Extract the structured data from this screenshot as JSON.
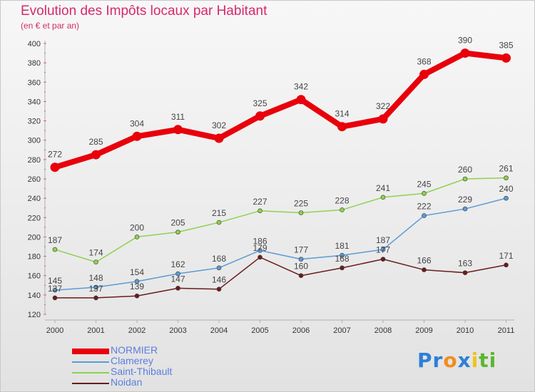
{
  "header": {
    "title": "Evolution des Impôts locaux par Habitant",
    "subtitle": "(en € et par an)"
  },
  "brand": {
    "letters": [
      {
        "ch": "P",
        "color": "#2e7fd6"
      },
      {
        "ch": "r",
        "color": "#2e7fd6"
      },
      {
        "ch": "o",
        "color": "#f28c1c"
      },
      {
        "ch": "x",
        "color": "#2e7fd6"
      },
      {
        "ch": "i",
        "color": "#f2c21c"
      },
      {
        "ch": "t",
        "color": "#59b82e"
      },
      {
        "ch": "i",
        "color": "#59b82e"
      }
    ]
  },
  "chart_data": {
    "type": "line",
    "title": "Evolution des Impôts locaux par Habitant",
    "subtitle": "(en € et par an)",
    "x": [
      "2000",
      "2001",
      "2002",
      "2003",
      "2004",
      "2005",
      "2006",
      "2007",
      "2008",
      "2009",
      "2010",
      "2011"
    ],
    "ylim": [
      120,
      400
    ],
    "yticks": [
      120,
      140,
      160,
      180,
      200,
      220,
      240,
      260,
      280,
      300,
      320,
      340,
      360,
      380,
      400
    ],
    "grid": false,
    "legend": "bottom-left",
    "series": [
      {
        "name": "NORMIER",
        "color": "#e8000b",
        "values": [
          272,
          285,
          304,
          311,
          302,
          325,
          342,
          314,
          322,
          368,
          390,
          385
        ],
        "labels": [
          "272",
          "285",
          "304",
          "311",
          "302",
          "325",
          "342",
          "314",
          "322",
          "368",
          "390",
          "385"
        ]
      },
      {
        "name": "Clamerey",
        "color": "#5b9bd5",
        "values": [
          145,
          148,
          154,
          162,
          168,
          186,
          177,
          181,
          187,
          222,
          229,
          240
        ],
        "labels": [
          "145",
          "148",
          "154",
          "162",
          "168",
          "186",
          "177",
          "181",
          "187",
          "222",
          "229",
          "240"
        ]
      },
      {
        "name": "Saint-Thibault",
        "color": "#8fd14f",
        "values": [
          187,
          174,
          200,
          205,
          215,
          227,
          225,
          228,
          241,
          245,
          260,
          261
        ],
        "labels": [
          "187",
          "174",
          "200",
          "205",
          "215",
          "227",
          "225",
          "228",
          "241",
          "245",
          "260",
          "261"
        ]
      },
      {
        "name": "Noidan",
        "color": "#6b1b1b",
        "values": [
          137,
          137,
          139,
          147,
          146,
          179,
          160,
          168,
          177,
          166,
          163,
          171
        ],
        "labels": [
          "137",
          "137",
          "139",
          "147",
          "146",
          "179",
          "160",
          "168",
          "177",
          "166",
          "163",
          "171"
        ]
      }
    ]
  }
}
